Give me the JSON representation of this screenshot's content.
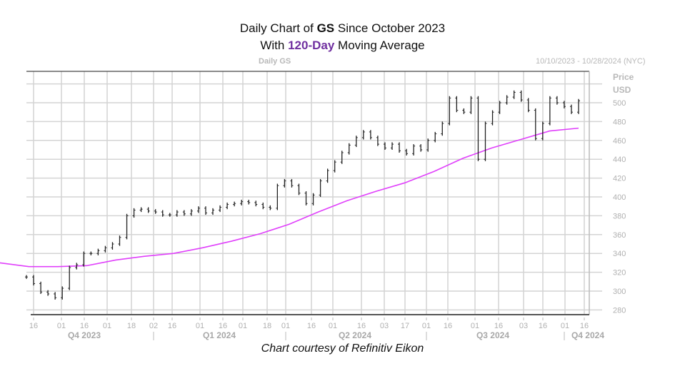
{
  "title": {
    "line1_pre": "Daily Chart of ",
    "line1_ticker": "GS",
    "line1_post": " Since October 2023",
    "line2_pre": "With ",
    "line2_highlight": "120-Day",
    "line2_post": " Moving Average"
  },
  "header": {
    "label": "Daily GS",
    "range": "10/10/2023 - 10/28/2024 (NYC)"
  },
  "axis": {
    "unit_line1": "Price",
    "unit_line2": "USD"
  },
  "footer": "Chart courtesy of Refinitiv Eikon",
  "colors": {
    "price": "#222222",
    "ma": "#e040fb",
    "grid": "#d4d4d4",
    "highlight": "#7030a0"
  },
  "chart_data": {
    "type": "line",
    "title": "Daily GS",
    "date_range": [
      "2023-10-10",
      "2024-10-28"
    ],
    "ylabel": "Price USD",
    "ylim": [
      275,
      530
    ],
    "yticks": [
      280,
      300,
      320,
      340,
      360,
      380,
      400,
      420,
      440,
      460,
      480,
      500
    ],
    "grid": true,
    "xticks": [
      "16",
      "01",
      "16",
      "01",
      "18",
      "02",
      "16",
      "01",
      "16",
      "01",
      "18",
      "01",
      "16",
      "01",
      "16",
      "03",
      "17",
      "01",
      "16",
      "01",
      "16",
      "03",
      "16",
      "01",
      "16"
    ],
    "quarters": [
      "Q4 2023",
      "Q1 2024",
      "Q2 2024",
      "Q3 2024",
      "Q4 2024"
    ],
    "series": [
      {
        "kind": "ohlc-bars",
        "close": [
          315,
          308,
          299,
          297,
          293,
          303,
          325,
          328,
          340,
          340,
          343,
          346,
          350,
          357,
          380,
          386,
          387,
          385,
          384,
          381,
          381,
          384,
          382,
          385,
          388,
          383,
          386,
          389,
          392,
          393,
          395,
          394,
          392,
          389,
          388,
          412,
          417,
          412,
          404,
          393,
          402,
          417,
          428,
          437,
          447,
          455,
          463,
          469,
          463,
          456,
          452,
          456,
          449,
          446,
          454,
          450,
          460,
          467,
          478,
          505,
          492,
          490,
          505,
          440,
          478,
          490,
          500,
          506,
          511,
          503,
          492,
          462,
          478,
          505,
          500,
          496,
          490,
          502
        ]
      },
      {
        "kind": "moving-average",
        "name": "120-Day",
        "values": [
          330,
          326,
          326,
          327,
          333,
          337,
          340,
          346,
          353,
          361,
          371,
          384,
          396,
          406,
          415,
          427,
          441,
          452,
          461,
          470,
          473
        ]
      }
    ]
  }
}
